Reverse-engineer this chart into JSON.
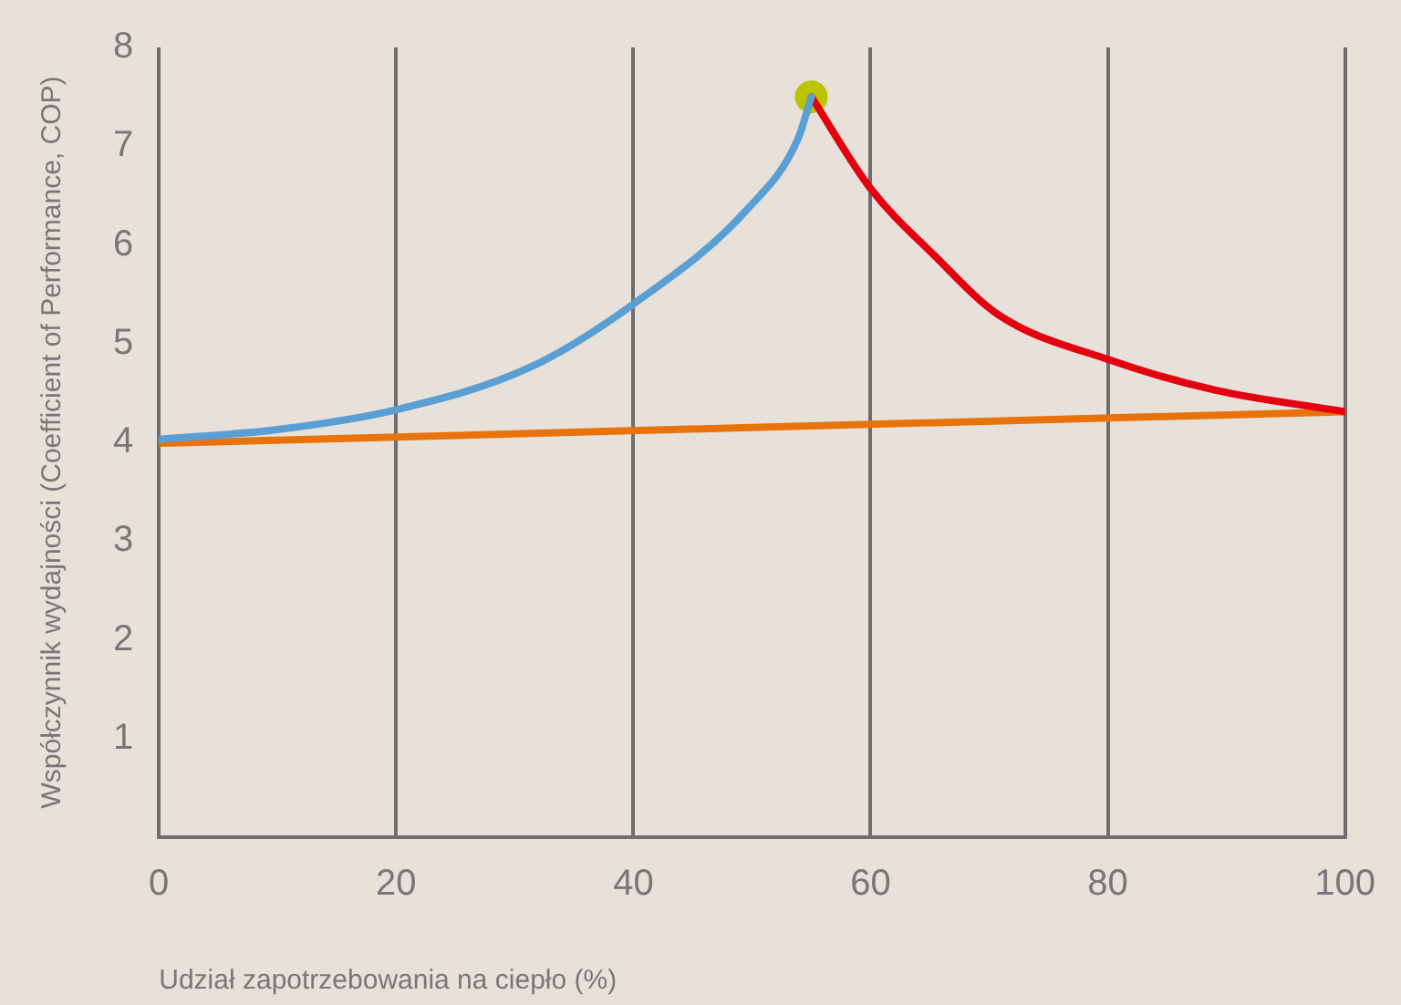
{
  "chart_data": {
    "type": "line",
    "xlabel": "Udział zapotrzebowania na ciepło (%)",
    "ylabel": "Współczynnik wydajności (Coefficient of Performance, COP)",
    "xlim": [
      0,
      100
    ],
    "xticks": [
      0,
      20,
      40,
      60,
      80,
      100
    ],
    "ylim": [
      0,
      8
    ],
    "yticks": [
      1,
      2,
      3,
      4,
      5,
      6,
      7,
      8
    ],
    "grid": "x",
    "legend": false,
    "marker": "none",
    "line_style": "solid",
    "series": [
      {
        "color": "#5a9fd4",
        "x": [
          0,
          10,
          20,
          31.3,
          40,
          49.6,
          53.9,
          55
        ],
        "values": [
          4.03,
          4.13,
          4.33,
          4.76,
          5.4,
          6.36,
          7.08,
          7.5
        ]
      },
      {
        "color": "#e3000f",
        "x": [
          55,
          60,
          65.4,
          70.8,
          80,
          89,
          100
        ],
        "values": [
          7.5,
          6.57,
          5.89,
          5.29,
          4.84,
          4.53,
          4.31
        ]
      },
      {
        "color": "#e8720c",
        "x": [
          0,
          100
        ],
        "values": [
          3.99,
          4.31
        ]
      },
      {
        "type": "scatter",
        "color": "#bcc400",
        "x": [
          55
        ],
        "values": [
          7.5
        ],
        "marker": "circle"
      }
    ]
  }
}
